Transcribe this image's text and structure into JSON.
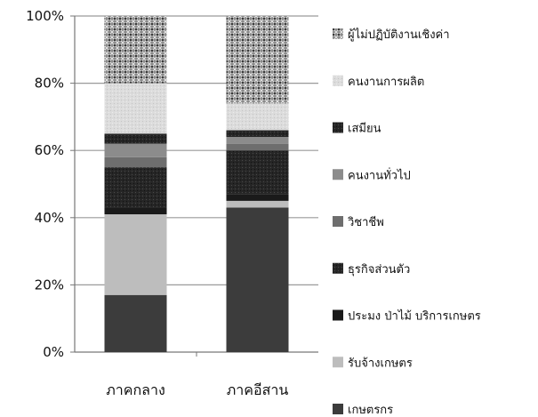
{
  "chart_data": {
    "type": "bar",
    "stacked": true,
    "percent": true,
    "categories": [
      "ภาคกลาง",
      "ภาคอีสาน"
    ],
    "ylim": [
      0,
      100
    ],
    "yticks": [
      "0%",
      "20%",
      "40%",
      "60%",
      "80%",
      "100%"
    ],
    "grid": "horizontal",
    "legend_position": "right",
    "series": [
      {
        "name": "เกษตรกร",
        "values": [
          17,
          43
        ],
        "color": "#3c3c3c",
        "pattern": "solid"
      },
      {
        "name": "รับจ้างเกษตร",
        "values": [
          24,
          2
        ],
        "color": "#bdbdbd",
        "pattern": "solid"
      },
      {
        "name": "ประมง ป่าไม้ บริการเกษตร",
        "values": [
          2,
          2
        ],
        "color": "#1a1a1a",
        "pattern": "solid"
      },
      {
        "name": "ธุรกิจส่วนตัว",
        "values": [
          12,
          13
        ],
        "color": "#262626",
        "pattern": "dots"
      },
      {
        "name": "วิชาชีพ",
        "values": [
          3,
          2
        ],
        "color": "#6e6e6e",
        "pattern": "solid"
      },
      {
        "name": "คนงานทั่วไป",
        "values": [
          4,
          2
        ],
        "color": "#8c8c8c",
        "pattern": "solid"
      },
      {
        "name": "เสมียน",
        "values": [
          3,
          2
        ],
        "color": "#7a7a7a",
        "pattern": "dots"
      },
      {
        "name": "คนงานการผลิต",
        "values": [
          15,
          8
        ],
        "color": "#dcdcdc",
        "pattern": "dots-light"
      },
      {
        "name": "ผู้ไม่ปฏิบัติงานเชิงค่า",
        "values": [
          20,
          26
        ],
        "color": "#7d7d7d",
        "pattern": "weave"
      }
    ]
  }
}
